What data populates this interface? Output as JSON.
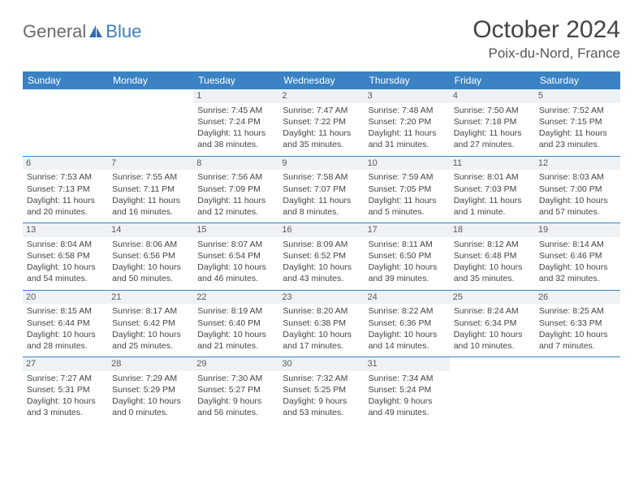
{
  "brand": {
    "part1": "General",
    "part2": "Blue"
  },
  "title": "October 2024",
  "location": "Poix-du-Nord, France",
  "colors": {
    "header_bg": "#3a82c4",
    "header_fg": "#ffffff",
    "daynum_bg": "#eef2f5",
    "border": "#3a82c4",
    "text": "#444444",
    "brand_gray": "#6b6b6b",
    "brand_blue": "#3a7fc4"
  },
  "weekdays": [
    "Sunday",
    "Monday",
    "Tuesday",
    "Wednesday",
    "Thursday",
    "Friday",
    "Saturday"
  ],
  "weeks": [
    [
      null,
      null,
      {
        "d": "1",
        "sr": "Sunrise: 7:45 AM",
        "ss": "Sunset: 7:24 PM",
        "dl": "Daylight: 11 hours and 38 minutes."
      },
      {
        "d": "2",
        "sr": "Sunrise: 7:47 AM",
        "ss": "Sunset: 7:22 PM",
        "dl": "Daylight: 11 hours and 35 minutes."
      },
      {
        "d": "3",
        "sr": "Sunrise: 7:48 AM",
        "ss": "Sunset: 7:20 PM",
        "dl": "Daylight: 11 hours and 31 minutes."
      },
      {
        "d": "4",
        "sr": "Sunrise: 7:50 AM",
        "ss": "Sunset: 7:18 PM",
        "dl": "Daylight: 11 hours and 27 minutes."
      },
      {
        "d": "5",
        "sr": "Sunrise: 7:52 AM",
        "ss": "Sunset: 7:15 PM",
        "dl": "Daylight: 11 hours and 23 minutes."
      }
    ],
    [
      {
        "d": "6",
        "sr": "Sunrise: 7:53 AM",
        "ss": "Sunset: 7:13 PM",
        "dl": "Daylight: 11 hours and 20 minutes."
      },
      {
        "d": "7",
        "sr": "Sunrise: 7:55 AM",
        "ss": "Sunset: 7:11 PM",
        "dl": "Daylight: 11 hours and 16 minutes."
      },
      {
        "d": "8",
        "sr": "Sunrise: 7:56 AM",
        "ss": "Sunset: 7:09 PM",
        "dl": "Daylight: 11 hours and 12 minutes."
      },
      {
        "d": "9",
        "sr": "Sunrise: 7:58 AM",
        "ss": "Sunset: 7:07 PM",
        "dl": "Daylight: 11 hours and 8 minutes."
      },
      {
        "d": "10",
        "sr": "Sunrise: 7:59 AM",
        "ss": "Sunset: 7:05 PM",
        "dl": "Daylight: 11 hours and 5 minutes."
      },
      {
        "d": "11",
        "sr": "Sunrise: 8:01 AM",
        "ss": "Sunset: 7:03 PM",
        "dl": "Daylight: 11 hours and 1 minute."
      },
      {
        "d": "12",
        "sr": "Sunrise: 8:03 AM",
        "ss": "Sunset: 7:00 PM",
        "dl": "Daylight: 10 hours and 57 minutes."
      }
    ],
    [
      {
        "d": "13",
        "sr": "Sunrise: 8:04 AM",
        "ss": "Sunset: 6:58 PM",
        "dl": "Daylight: 10 hours and 54 minutes."
      },
      {
        "d": "14",
        "sr": "Sunrise: 8:06 AM",
        "ss": "Sunset: 6:56 PM",
        "dl": "Daylight: 10 hours and 50 minutes."
      },
      {
        "d": "15",
        "sr": "Sunrise: 8:07 AM",
        "ss": "Sunset: 6:54 PM",
        "dl": "Daylight: 10 hours and 46 minutes."
      },
      {
        "d": "16",
        "sr": "Sunrise: 8:09 AM",
        "ss": "Sunset: 6:52 PM",
        "dl": "Daylight: 10 hours and 43 minutes."
      },
      {
        "d": "17",
        "sr": "Sunrise: 8:11 AM",
        "ss": "Sunset: 6:50 PM",
        "dl": "Daylight: 10 hours and 39 minutes."
      },
      {
        "d": "18",
        "sr": "Sunrise: 8:12 AM",
        "ss": "Sunset: 6:48 PM",
        "dl": "Daylight: 10 hours and 35 minutes."
      },
      {
        "d": "19",
        "sr": "Sunrise: 8:14 AM",
        "ss": "Sunset: 6:46 PM",
        "dl": "Daylight: 10 hours and 32 minutes."
      }
    ],
    [
      {
        "d": "20",
        "sr": "Sunrise: 8:15 AM",
        "ss": "Sunset: 6:44 PM",
        "dl": "Daylight: 10 hours and 28 minutes."
      },
      {
        "d": "21",
        "sr": "Sunrise: 8:17 AM",
        "ss": "Sunset: 6:42 PM",
        "dl": "Daylight: 10 hours and 25 minutes."
      },
      {
        "d": "22",
        "sr": "Sunrise: 8:19 AM",
        "ss": "Sunset: 6:40 PM",
        "dl": "Daylight: 10 hours and 21 minutes."
      },
      {
        "d": "23",
        "sr": "Sunrise: 8:20 AM",
        "ss": "Sunset: 6:38 PM",
        "dl": "Daylight: 10 hours and 17 minutes."
      },
      {
        "d": "24",
        "sr": "Sunrise: 8:22 AM",
        "ss": "Sunset: 6:36 PM",
        "dl": "Daylight: 10 hours and 14 minutes."
      },
      {
        "d": "25",
        "sr": "Sunrise: 8:24 AM",
        "ss": "Sunset: 6:34 PM",
        "dl": "Daylight: 10 hours and 10 minutes."
      },
      {
        "d": "26",
        "sr": "Sunrise: 8:25 AM",
        "ss": "Sunset: 6:33 PM",
        "dl": "Daylight: 10 hours and 7 minutes."
      }
    ],
    [
      {
        "d": "27",
        "sr": "Sunrise: 7:27 AM",
        "ss": "Sunset: 5:31 PM",
        "dl": "Daylight: 10 hours and 3 minutes."
      },
      {
        "d": "28",
        "sr": "Sunrise: 7:29 AM",
        "ss": "Sunset: 5:29 PM",
        "dl": "Daylight: 10 hours and 0 minutes."
      },
      {
        "d": "29",
        "sr": "Sunrise: 7:30 AM",
        "ss": "Sunset: 5:27 PM",
        "dl": "Daylight: 9 hours and 56 minutes."
      },
      {
        "d": "30",
        "sr": "Sunrise: 7:32 AM",
        "ss": "Sunset: 5:25 PM",
        "dl": "Daylight: 9 hours and 53 minutes."
      },
      {
        "d": "31",
        "sr": "Sunrise: 7:34 AM",
        "ss": "Sunset: 5:24 PM",
        "dl": "Daylight: 9 hours and 49 minutes."
      },
      null,
      null
    ]
  ]
}
